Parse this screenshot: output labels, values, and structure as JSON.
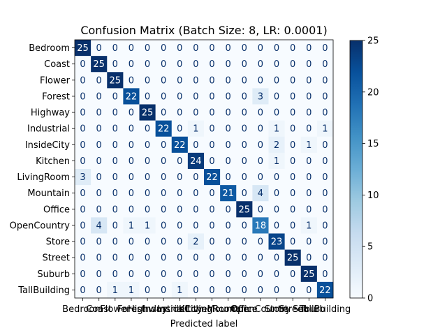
{
  "chart_data": {
    "type": "heatmap",
    "title": "Confusion Matrix (Batch Size: 8, LR: 0.0001)",
    "xlabel": "Predicted label",
    "ylabel": "",
    "labels": [
      "Bedroom",
      "Coast",
      "Flower",
      "Forest",
      "Highway",
      "Industrial",
      "InsideCity",
      "Kitchen",
      "LivingRoom",
      "Mountain",
      "Office",
      "OpenCountry",
      "Store",
      "Street",
      "Suburb",
      "TallBuilding"
    ],
    "matrix": [
      [
        25,
        0,
        0,
        0,
        0,
        0,
        0,
        0,
        0,
        0,
        0,
        0,
        0,
        0,
        0,
        0
      ],
      [
        0,
        25,
        0,
        0,
        0,
        0,
        0,
        0,
        0,
        0,
        0,
        0,
        0,
        0,
        0,
        0
      ],
      [
        0,
        0,
        25,
        0,
        0,
        0,
        0,
        0,
        0,
        0,
        0,
        0,
        0,
        0,
        0,
        0
      ],
      [
        0,
        0,
        0,
        22,
        0,
        0,
        0,
        0,
        0,
        0,
        0,
        3,
        0,
        0,
        0,
        0
      ],
      [
        0,
        0,
        0,
        0,
        25,
        0,
        0,
        0,
        0,
        0,
        0,
        0,
        0,
        0,
        0,
        0
      ],
      [
        0,
        0,
        0,
        0,
        0,
        22,
        0,
        1,
        0,
        0,
        0,
        0,
        1,
        0,
        0,
        1
      ],
      [
        0,
        0,
        0,
        0,
        0,
        0,
        22,
        0,
        0,
        0,
        0,
        0,
        2,
        0,
        1,
        0
      ],
      [
        0,
        0,
        0,
        0,
        0,
        0,
        0,
        24,
        0,
        0,
        0,
        0,
        1,
        0,
        0,
        0
      ],
      [
        3,
        0,
        0,
        0,
        0,
        0,
        0,
        0,
        22,
        0,
        0,
        0,
        0,
        0,
        0,
        0
      ],
      [
        0,
        0,
        0,
        0,
        0,
        0,
        0,
        0,
        0,
        21,
        0,
        4,
        0,
        0,
        0,
        0
      ],
      [
        0,
        0,
        0,
        0,
        0,
        0,
        0,
        0,
        0,
        0,
        25,
        0,
        0,
        0,
        0,
        0
      ],
      [
        0,
        4,
        0,
        1,
        1,
        0,
        0,
        0,
        0,
        0,
        0,
        18,
        0,
        0,
        1,
        0
      ],
      [
        0,
        0,
        0,
        0,
        0,
        0,
        0,
        2,
        0,
        0,
        0,
        0,
        23,
        0,
        0,
        0
      ],
      [
        0,
        0,
        0,
        0,
        0,
        0,
        0,
        0,
        0,
        0,
        0,
        0,
        0,
        25,
        0,
        0
      ],
      [
        0,
        0,
        0,
        0,
        0,
        0,
        0,
        0,
        0,
        0,
        0,
        0,
        0,
        0,
        25,
        0
      ],
      [
        0,
        0,
        1,
        1,
        0,
        0,
        1,
        0,
        0,
        0,
        0,
        0,
        0,
        0,
        0,
        22
      ]
    ],
    "colorbar": {
      "min": 0,
      "max": 25,
      "ticks": [
        0,
        5,
        10,
        15,
        20,
        25
      ]
    },
    "colormap_light": "#f7fbff",
    "colormap_dark": "#08306b"
  }
}
